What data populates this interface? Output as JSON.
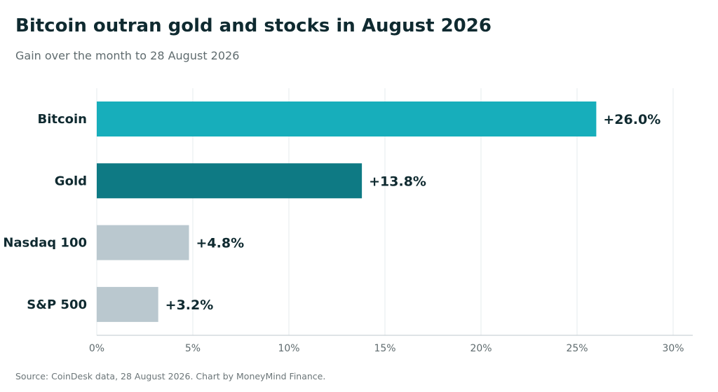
{
  "header": {
    "title": "Bitcoin outran gold and stocks in August 2026",
    "subtitle": "Gain over the month to 28 August 2026"
  },
  "footer": {
    "source": "Source: CoinDesk data, 28 August 2026. Chart by MoneyMind Finance."
  },
  "colors": {
    "bitcoin": "#17aebb",
    "gold": "#0e7a84",
    "indices": "#bac8cf",
    "text": "#0f2a30",
    "grid": "#e6ebed",
    "axis": "#c9d2d6"
  },
  "chart_data": {
    "type": "bar",
    "orientation": "horizontal",
    "title": "Bitcoin outran gold and stocks in August 2026",
    "subtitle": "Gain over the month to 28 August 2026",
    "categories": [
      "Bitcoin",
      "Gold",
      "Nasdaq 100",
      "S&P 500"
    ],
    "values": [
      26.0,
      13.8,
      4.8,
      3.2
    ],
    "value_labels": [
      "+26.0%",
      "+13.8%",
      "+4.8%",
      "+3.2%"
    ],
    "bar_colors": [
      "#17aebb",
      "#0e7a84",
      "#bac8cf",
      "#bac8cf"
    ],
    "xlabel": "",
    "ylabel": "",
    "xlim": [
      0,
      30
    ],
    "x_ticks": [
      0,
      5,
      10,
      15,
      20,
      25,
      30
    ],
    "x_tick_labels": [
      "0%",
      "5%",
      "10%",
      "15%",
      "20%",
      "25%",
      "30%"
    ],
    "grid": true,
    "legend": "none"
  }
}
